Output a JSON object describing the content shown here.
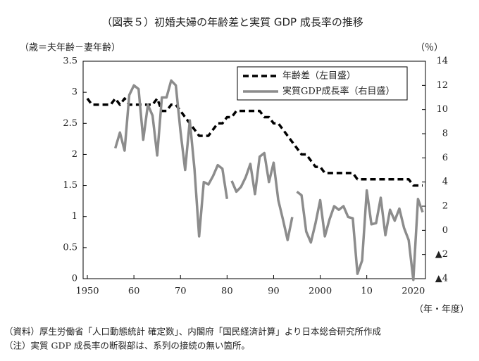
{
  "chart_data": {
    "type": "line",
    "title": "（図表５）初婚夫婦の年齢差と実質 GDP 成長率の推移",
    "y_label": "（歳＝夫年齢－妻年齢）",
    "y2_label": "（％）",
    "x_label": "（年・年度）",
    "notes": [
      "（資料）厚生労働省「人口動態統計 確定数」、内閣府「国民経済計算」より日本総合研究所作成",
      "（注）実質 GDP 成長率の断裂部は、系列の接続の無い箇所。"
    ],
    "xlim": [
      1950,
      2022
    ],
    "xticks": [
      1950,
      {
        "value": 1960,
        "label": "60"
      },
      {
        "value": 1970,
        "label": "70"
      },
      {
        "value": 1980,
        "label": "80"
      },
      {
        "value": 1990,
        "label": "90"
      },
      2000,
      {
        "value": 2010,
        "label": "10"
      },
      2020
    ],
    "ylim": [
      0,
      3.5
    ],
    "yticks": [
      0,
      0.5,
      1,
      1.5,
      2,
      2.5,
      3,
      3.5
    ],
    "y2lim": [
      -4,
      14
    ],
    "y2ticks": [
      {
        "value": -4,
        "label": "▲4"
      },
      {
        "value": -2,
        "label": "▲2"
      },
      0,
      2,
      4,
      6,
      8,
      10,
      12,
      14
    ],
    "legend": "upper right",
    "series": [
      {
        "name": "年齢差（左目盛）",
        "color": "#000000",
        "dashed": true,
        "x": [
          1950,
          1951,
          1952,
          1953,
          1954,
          1955,
          1956,
          1957,
          1958,
          1959,
          1960,
          1961,
          1962,
          1963,
          1964,
          1965,
          1966,
          1967,
          1968,
          1969,
          1970,
          1971,
          1972,
          1973,
          1974,
          1975,
          1976,
          1977,
          1978,
          1979,
          1980,
          1981,
          1982,
          1983,
          1984,
          1985,
          1986,
          1987,
          1988,
          1989,
          1990,
          1991,
          1992,
          1993,
          1994,
          1995,
          1996,
          1997,
          1998,
          1999,
          2000,
          2001,
          2002,
          2003,
          2004,
          2005,
          2006,
          2007,
          2008,
          2009,
          2010,
          2011,
          2012,
          2013,
          2014,
          2015,
          2016,
          2017,
          2018,
          2019,
          2020,
          2021,
          2022
        ],
        "values": [
          2.9,
          2.8,
          2.8,
          2.8,
          2.8,
          2.8,
          2.9,
          2.8,
          2.9,
          2.8,
          2.8,
          2.8,
          2.8,
          2.8,
          2.8,
          2.9,
          2.7,
          2.7,
          2.8,
          2.8,
          2.7,
          2.6,
          2.5,
          2.4,
          2.3,
          2.3,
          2.3,
          2.4,
          2.5,
          2.5,
          2.6,
          2.6,
          2.7,
          2.7,
          2.7,
          2.7,
          2.7,
          2.7,
          2.6,
          2.6,
          2.5,
          2.5,
          2.4,
          2.3,
          2.2,
          2.1,
          2.0,
          2.0,
          1.9,
          1.8,
          1.8,
          1.7,
          1.7,
          1.7,
          1.7,
          1.7,
          1.7,
          1.7,
          1.6,
          1.6,
          1.6,
          1.6,
          1.6,
          1.6,
          1.6,
          1.6,
          1.6,
          1.6,
          1.6,
          1.6,
          1.5,
          1.5,
          1.5
        ]
      },
      {
        "name": "実質GDP成長率（右目盛）",
        "color": "#8c8c8c",
        "axis": "y2",
        "segments": [
          {
            "x": [
              1956,
              1957,
              1958,
              1959,
              1960,
              1961,
              1962,
              1963,
              1964,
              1965,
              1966,
              1967,
              1968,
              1969,
              1970,
              1971,
              1972,
              1973,
              1974,
              1975,
              1976,
              1977,
              1978,
              1979,
              1980
            ],
            "values": [
              6.8,
              8.1,
              6.6,
              11.2,
              12.0,
              11.7,
              7.5,
              10.4,
              9.5,
              6.2,
              11.0,
              11.0,
              12.4,
              12.0,
              8.2,
              5.0,
              9.1,
              5.1,
              -0.5,
              4.0,
              3.8,
              4.5,
              5.4,
              5.1,
              2.6
            ]
          },
          {
            "x": [
              1981,
              1982,
              1983,
              1984,
              1985,
              1986,
              1987,
              1988,
              1989,
              1990,
              1991,
              1992,
              1993,
              1994
            ],
            "values": [
              4.1,
              3.2,
              3.6,
              4.4,
              5.5,
              3.0,
              6.1,
              6.4,
              4.0,
              5.6,
              2.5,
              0.9,
              -0.8,
              1.1
            ]
          },
          {
            "x": [
              1995,
              1996,
              1997,
              1998,
              1999,
              2000,
              2001,
              2002,
              2003,
              2004,
              2005,
              2006,
              2007,
              2008,
              2009,
              2010,
              2011,
              2012,
              2013,
              2014,
              2015,
              2016,
              2017,
              2018,
              2019,
              2020,
              2021,
              2022
            ],
            "values": [
              3.2,
              2.9,
              -0.1,
              -1.0,
              0.6,
              2.5,
              -0.5,
              0.9,
              2.0,
              1.7,
              2.0,
              1.1,
              1.0,
              -3.6,
              -2.5,
              3.3,
              0.5,
              0.6,
              2.7,
              -0.4,
              1.7,
              0.8,
              1.8,
              0.2,
              -0.8,
              -4.1,
              2.6,
              1.5
            ]
          }
        ]
      }
    ]
  }
}
